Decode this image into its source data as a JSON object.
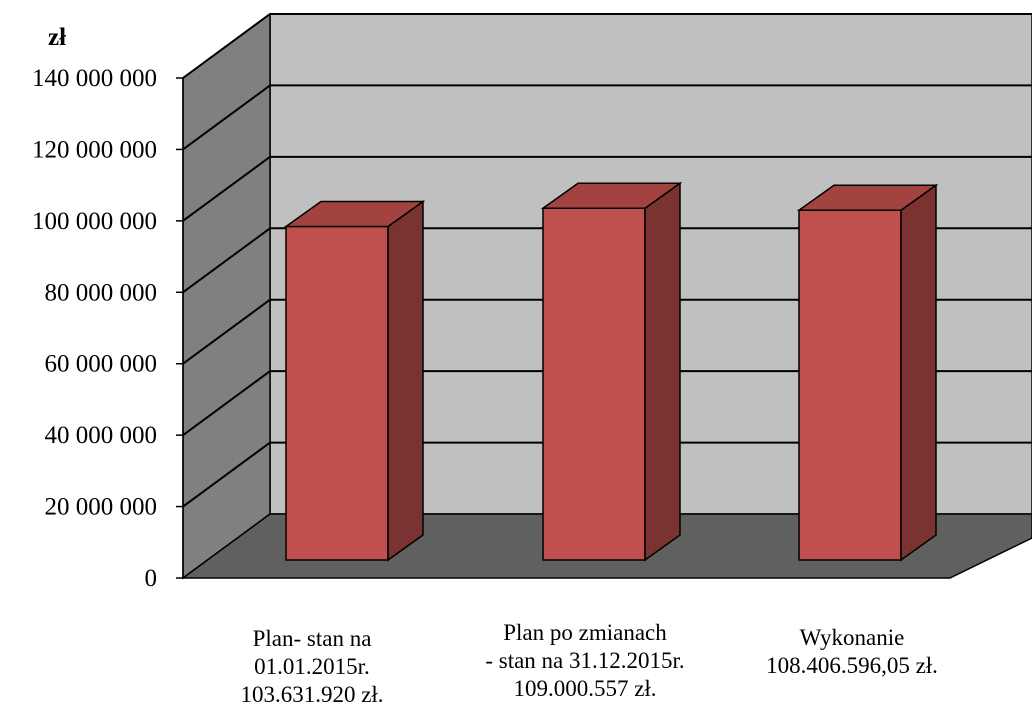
{
  "chart_data": {
    "type": "bar",
    "y_unit": "zł",
    "categories": [
      [
        "Plan- stan na",
        "01.01.2015r.",
        "103.631.920 zł."
      ],
      [
        "Plan po zmianach",
        "- stan na 31.12.2015r.",
        "109.000.557 zł."
      ],
      [
        "Wykonanie",
        "108.406.596,05 zł."
      ]
    ],
    "values": [
      103631920,
      109000557,
      108406596.05
    ],
    "ylim": [
      0,
      140000000
    ],
    "y_ticks": [
      0,
      20000000,
      40000000,
      60000000,
      80000000,
      100000000,
      120000000,
      140000000
    ],
    "y_tick_labels": [
      "0",
      "20 000 000",
      "40 000 000",
      "60 000 000",
      "80 000 000",
      "100 000 000",
      "120 000 000",
      "140 000 000"
    ],
    "style": "3d-column",
    "grid": true,
    "colors": {
      "bar_front": "#c0504d",
      "bar_side": "#7b3331",
      "bar_top": "#a34341",
      "back_wall": "#c0c0c0",
      "side_wall": "#808080",
      "floor": "#606060"
    }
  }
}
